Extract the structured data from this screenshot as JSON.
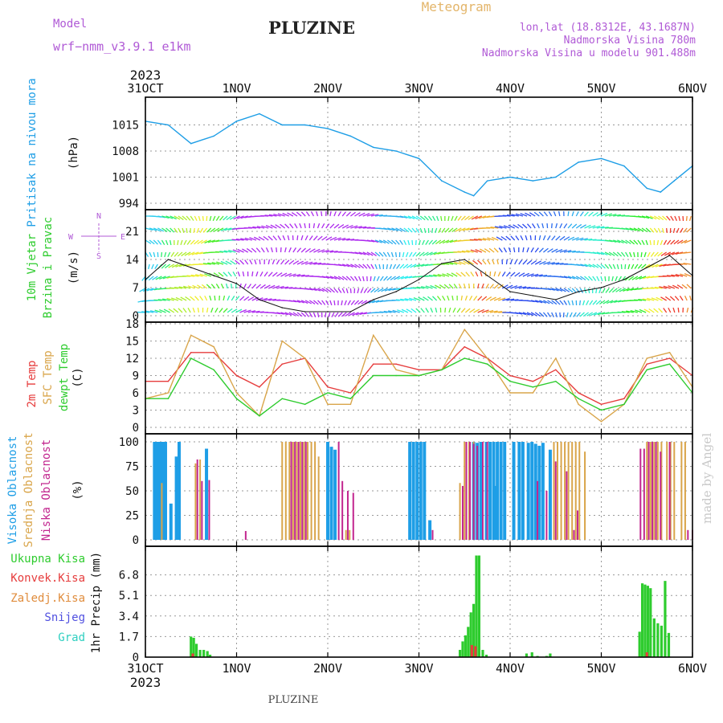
{
  "header": {
    "model_label": "Model",
    "model_value": "wrf−nmm_v3.9.1  e1km",
    "title": "PLUZINE",
    "meteogram": "Meteogram",
    "coords": "lon,lat (18.8312E, 43.1687N)",
    "elevation": "Nadmorska Visina 780m",
    "model_elevation": "Nadmorska Visina u modelu 901.488m"
  },
  "footer": {
    "station": "PLUZINE",
    "watermark": "made by Angel"
  },
  "time_axis": {
    "year": "2023",
    "ticks": [
      "31OCT",
      "1NOV",
      "2NOV",
      "3NOV",
      "4NOV",
      "5NOV",
      "6NOV"
    ]
  },
  "colors": {
    "pressure": "#1e9ee6",
    "temp2m": "#e63c3c",
    "sfc_temp": "#d9a54a",
    "dewpt": "#2ecc2e",
    "high_cloud": "#1e9ee6",
    "mid_cloud": "#d9a54a",
    "low_cloud": "#c2268f",
    "total_precip": "#2ecc2e",
    "conv_precip": "#e63c3c",
    "frozen_precip": "#e08c3c",
    "snow": "#5050e0",
    "hail": "#2ecfc0",
    "label_purple": "#b05ad6"
  },
  "chart_data": [
    {
      "type": "line",
      "panel": "pressure",
      "ylabel_left": "Pritisak na nivou mora",
      "ylabel_unit": "(hPa)",
      "yticks": [
        "1015",
        "1008",
        "1001",
        "994"
      ],
      "ylim": [
        994,
        1022
      ],
      "x_days": [
        0,
        0.25,
        0.5,
        0.75,
        1,
        1.25,
        1.5,
        1.75,
        2,
        2.25,
        2.5,
        2.75,
        3,
        3.25,
        3.5,
        3.6,
        3.75,
        4,
        4.25,
        4.5,
        4.75,
        5,
        5.25,
        5.5,
        5.65,
        5.8,
        6
      ],
      "series": [
        {
          "name": "",
          "values": [
            1016,
            1015,
            1010,
            1012,
            1016,
            1018,
            1015,
            1015,
            1014,
            1012,
            1009,
            1008,
            1006,
            1000,
            997,
            996,
            1000,
            1001,
            1000,
            1001,
            1005,
            1006,
            1004,
            998,
            997,
            1000,
            1004
          ]
        }
      ]
    },
    {
      "type": "line",
      "panel": "wind",
      "ylabel_left": "10m Vjetar",
      "ylabel_left2": "Brzina i Pravac",
      "ylabel_unit": "(m/s)",
      "compass": [
        "N",
        "E",
        "S",
        "W"
      ],
      "yticks": [
        "21",
        "14",
        "7",
        "0"
      ],
      "ylim": [
        0,
        26
      ],
      "x_days": [
        0,
        0.25,
        0.5,
        0.75,
        1,
        1.25,
        1.5,
        1.75,
        2,
        2.25,
        2.5,
        2.75,
        3,
        3.25,
        3.5,
        3.75,
        4,
        4.25,
        4.5,
        4.75,
        5,
        5.25,
        5.5,
        5.75,
        6
      ],
      "series": [
        {
          "name": "",
          "values": [
            9,
            14,
            12,
            10,
            8,
            4,
            2,
            1,
            1,
            1,
            4,
            6,
            9,
            13,
            14,
            10,
            6,
            5,
            4,
            6,
            7,
            9,
            12,
            15,
            10
          ]
        }
      ]
    },
    {
      "type": "line",
      "panel": "temperature",
      "ylabel_left": [
        "2m Temp",
        "SFC Temp",
        "dewpt Temp"
      ],
      "ylabel_unit": "(C)",
      "yticks": [
        "18",
        "15",
        "12",
        "9",
        "6",
        "3",
        "0"
      ],
      "ylim": [
        0,
        18
      ],
      "x_days": [
        0,
        0.25,
        0.5,
        0.75,
        1,
        1.25,
        1.5,
        1.75,
        2,
        2.25,
        2.5,
        2.75,
        3,
        3.25,
        3.5,
        3.75,
        4,
        4.25,
        4.5,
        4.75,
        5,
        5.25,
        5.5,
        5.75,
        6
      ],
      "series": [
        {
          "name": "2m Temp",
          "values": [
            8,
            8,
            13,
            13,
            9,
            7,
            11,
            12,
            7,
            6,
            11,
            11,
            10,
            10,
            14,
            12,
            9,
            8,
            10,
            6,
            4,
            5,
            11,
            12,
            9
          ]
        },
        {
          "name": "SFC Temp",
          "values": [
            5,
            6,
            16,
            14,
            6,
            2,
            15,
            12,
            4,
            4,
            16,
            10,
            9,
            10,
            17,
            12,
            6,
            6,
            12,
            4,
            1,
            4,
            12,
            13,
            7
          ]
        },
        {
          "name": "dewpt Temp",
          "values": [
            5,
            5,
            12,
            10,
            5,
            2,
            5,
            4,
            6,
            5,
            9,
            9,
            9,
            10,
            12,
            11,
            8,
            7,
            8,
            5,
            3,
            4,
            10,
            11,
            6
          ]
        }
      ]
    },
    {
      "type": "bar",
      "panel": "cloud",
      "ylabel_left": [
        "Visoka Oblacnost",
        "Srednja Oblacnost",
        "Niska Oblacnost"
      ],
      "ylabel_unit": "(%)",
      "yticks": [
        "100",
        "75",
        "50",
        "25",
        "0"
      ],
      "ylim": [
        0,
        100
      ],
      "series": [
        {
          "name": "Visoka Oblacnost",
          "bars": [
            [
              0.1,
              100
            ],
            [
              0.13,
              100
            ],
            [
              0.16,
              100
            ],
            [
              0.19,
              100
            ],
            [
              0.22,
              100
            ],
            [
              0.28,
              37
            ],
            [
              0.34,
              85
            ],
            [
              0.37,
              100
            ],
            [
              0.67,
              93
            ],
            [
              3.74,
              100
            ],
            [
              3.78,
              100
            ],
            [
              3.82,
              100
            ],
            [
              3.86,
              100
            ],
            [
              3.9,
              100
            ],
            [
              3.94,
              100
            ],
            [
              4.04,
              100
            ],
            [
              4.1,
              100
            ],
            [
              4.14,
              100
            ],
            [
              4.2,
              99
            ],
            [
              4.24,
              100
            ],
            [
              4.28,
              98
            ],
            [
              4.32,
              96
            ],
            [
              2.0,
              100
            ],
            [
              2.04,
              95
            ],
            [
              2.08,
              92
            ],
            [
              2.9,
              100
            ],
            [
              2.94,
              100
            ],
            [
              2.98,
              100
            ],
            [
              3.02,
              100
            ],
            [
              3.06,
              100
            ],
            [
              3.12,
              20
            ],
            [
              3.6,
              100
            ],
            [
              3.64,
              99
            ],
            [
              3.68,
              100
            ],
            [
              3.84,
              55
            ],
            [
              4.36,
              99
            ],
            [
              4.44,
              92
            ]
          ]
        },
        {
          "name": "Srednja Oblacnost",
          "bars": [
            [
              0.18,
              58
            ],
            [
              0.55,
              78
            ],
            [
              0.6,
              82
            ],
            [
              1.5,
              100
            ],
            [
              1.54,
              100
            ],
            [
              1.58,
              100
            ],
            [
              1.62,
              100
            ],
            [
              1.66,
              100
            ],
            [
              1.7,
              100
            ],
            [
              1.74,
              100
            ],
            [
              1.78,
              100
            ],
            [
              1.82,
              100
            ],
            [
              1.86,
              100
            ],
            [
              1.9,
              85
            ],
            [
              2.2,
              10
            ],
            [
              2.24,
              10
            ],
            [
              3.45,
              58
            ],
            [
              3.5,
              100
            ],
            [
              3.55,
              100
            ],
            [
              3.6,
              100
            ],
            [
              4.48,
              100
            ],
            [
              4.52,
              100
            ],
            [
              4.56,
              100
            ],
            [
              4.6,
              100
            ],
            [
              4.64,
              100
            ],
            [
              4.68,
              100
            ],
            [
              4.72,
              100
            ],
            [
              4.76,
              100
            ],
            [
              4.82,
              90
            ],
            [
              5.5,
              100
            ],
            [
              5.54,
              100
            ],
            [
              5.58,
              100
            ],
            [
              5.62,
              100
            ],
            [
              5.66,
              100
            ],
            [
              5.72,
              100
            ],
            [
              5.76,
              100
            ],
            [
              5.8,
              100
            ],
            [
              5.88,
              100
            ],
            [
              5.92,
              100
            ]
          ]
        },
        {
          "name": "Niska Oblacnost",
          "bars": [
            [
              0.57,
              82
            ],
            [
              0.62,
              60
            ],
            [
              0.7,
              61
            ],
            [
              1.1,
              9
            ],
            [
              1.6,
              100
            ],
            [
              1.64,
              100
            ],
            [
              1.68,
              100
            ],
            [
              1.72,
              100
            ],
            [
              1.76,
              100
            ],
            [
              2.12,
              100
            ],
            [
              2.16,
              60
            ],
            [
              2.22,
              50
            ],
            [
              2.28,
              48
            ],
            [
              3.15,
              10
            ],
            [
              3.48,
              55
            ],
            [
              3.52,
              100
            ],
            [
              3.56,
              100
            ],
            [
              3.6,
              98
            ],
            [
              3.64,
              96
            ],
            [
              3.7,
              100
            ],
            [
              3.75,
              100
            ],
            [
              4.3,
              60
            ],
            [
              4.4,
              50
            ],
            [
              4.5,
              80
            ],
            [
              4.62,
              70
            ],
            [
              4.7,
              10
            ],
            [
              4.74,
              30
            ],
            [
              5.43,
              93
            ],
            [
              5.47,
              93
            ],
            [
              5.52,
              100
            ],
            [
              5.56,
              100
            ],
            [
              5.6,
              100
            ],
            [
              5.65,
              90
            ],
            [
              5.75,
              100
            ],
            [
              5.95,
              10
            ],
            [
              6.0,
              10
            ]
          ]
        }
      ]
    },
    {
      "type": "bar",
      "panel": "precipitation",
      "ylabel_left": [
        "Ukupna Kisa",
        "Konvek.Kisa",
        "Zaledj.Kisa",
        "Snijeg",
        "Grad"
      ],
      "ylabel_unit": "1hr Precip (mm)",
      "yticks": [
        "6.8",
        "5.1",
        "3.4",
        "1.7",
        "0"
      ],
      "ylim": [
        0,
        8.5
      ],
      "series": [
        {
          "name": "Ukupna Kisa",
          "bars": [
            [
              0.5,
              1.7
            ],
            [
              0.53,
              1.6
            ],
            [
              0.56,
              1.1
            ],
            [
              0.6,
              0.6
            ],
            [
              0.64,
              0.6
            ],
            [
              0.68,
              0.5
            ],
            [
              0.71,
              0.2
            ],
            [
              3.45,
              0.6
            ],
            [
              3.48,
              1.3
            ],
            [
              3.51,
              1.8
            ],
            [
              3.54,
              2.5
            ],
            [
              3.57,
              3.7
            ],
            [
              3.6,
              4.4
            ],
            [
              3.63,
              8.4
            ],
            [
              3.66,
              8.4
            ],
            [
              3.7,
              0.6
            ],
            [
              3.74,
              0.2
            ],
            [
              4.18,
              0.3
            ],
            [
              4.24,
              0.4
            ],
            [
              4.3,
              0.1
            ],
            [
              4.4,
              0.1
            ],
            [
              4.44,
              0.3
            ],
            [
              5.42,
              2.1
            ],
            [
              5.45,
              6.1
            ],
            [
              5.48,
              6.0
            ],
            [
              5.51,
              5.9
            ],
            [
              5.54,
              5.7
            ],
            [
              5.58,
              3.2
            ],
            [
              5.62,
              2.8
            ],
            [
              5.66,
              2.6
            ],
            [
              5.7,
              6.3
            ],
            [
              5.74,
              2.0
            ]
          ]
        },
        {
          "name": "Konvek.Kisa",
          "bars": [
            [
              0.52,
              0.3
            ],
            [
              3.58,
              1.0
            ],
            [
              3.62,
              0.9
            ],
            [
              5.5,
              0.4
            ]
          ]
        }
      ]
    }
  ]
}
